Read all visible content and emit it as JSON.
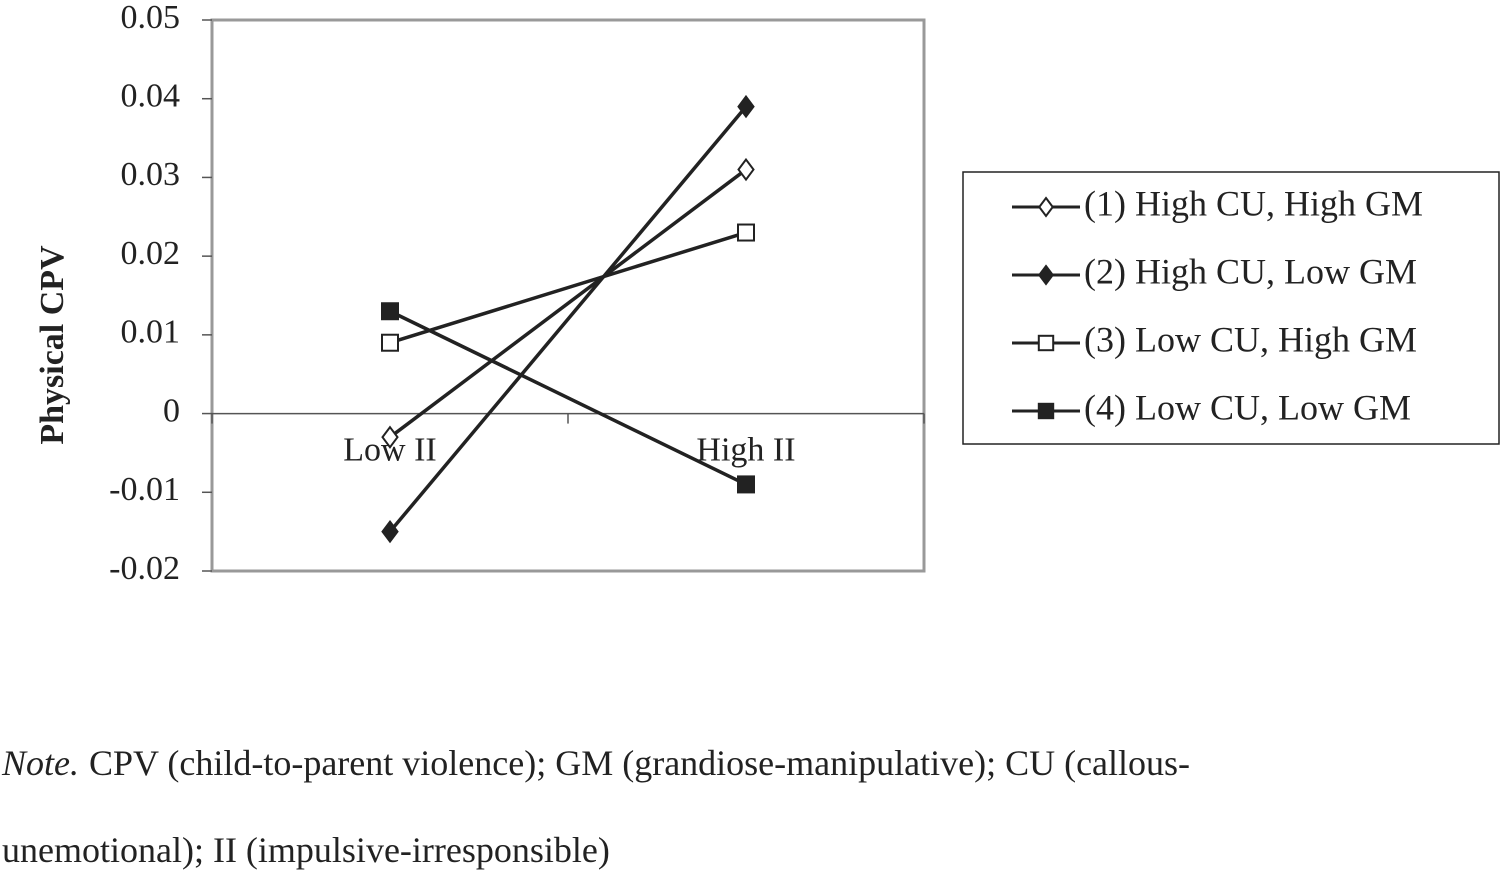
{
  "chart_data": {
    "type": "line",
    "y_label": "Physical CPV",
    "categories": [
      "Low II",
      "High II"
    ],
    "series": [
      {
        "name": "(1) High CU, High GM",
        "color": "#222222",
        "marker": "diamond",
        "filled": false,
        "values": [
          -0.003,
          0.031
        ]
      },
      {
        "name": "(2) High CU, Low GM",
        "color": "#222222",
        "marker": "diamond",
        "filled": true,
        "values": [
          -0.015,
          0.039
        ]
      },
      {
        "name": "(3) Low CU, High GM",
        "color": "#222222",
        "marker": "square",
        "filled": false,
        "values": [
          0.009,
          0.023
        ]
      },
      {
        "name": "(4) Low CU, Low GM",
        "color": "#222222",
        "marker": "square",
        "filled": true,
        "values": [
          0.013,
          -0.009
        ]
      }
    ],
    "ylim": [
      -0.02,
      0.05
    ],
    "yticks": [
      -0.02,
      -0.01,
      0,
      0.01,
      0.02,
      0.03,
      0.04,
      0.05
    ],
    "legend": "right"
  },
  "note": {
    "label": "Note.",
    "lines": [
      "CPV (child-to-parent violence); GM (grandiose-manipulative); CU (callous-",
      "unemotional); II (impulsive-irresponsible)"
    ]
  }
}
